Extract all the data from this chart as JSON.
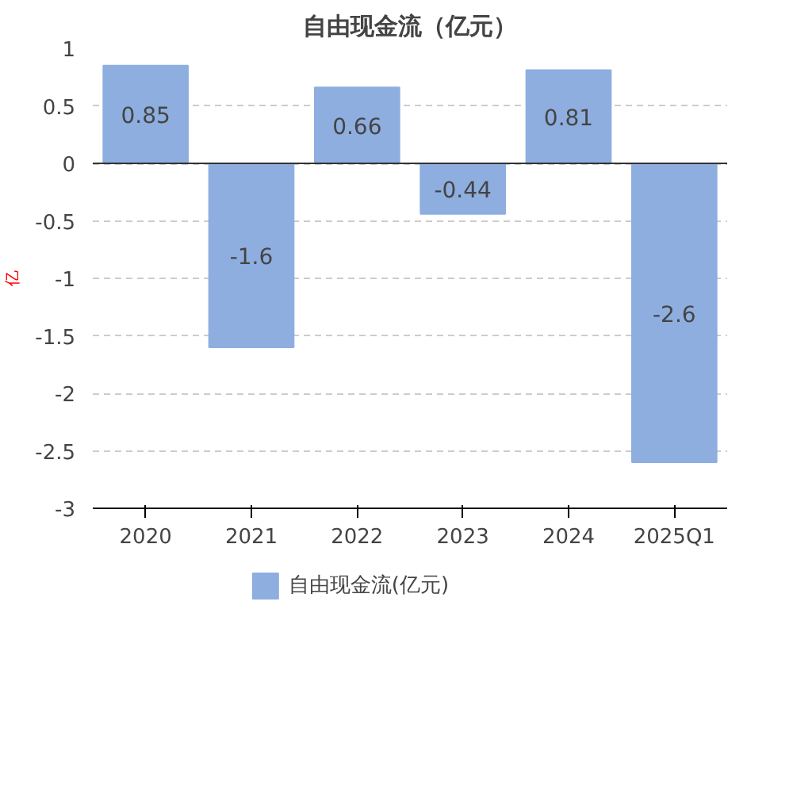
{
  "chart_data": {
    "type": "bar",
    "title": "自由现金流（亿元）",
    "ylabel": "亿",
    "categories": [
      "2020",
      "2021",
      "2022",
      "2023",
      "2024",
      "2025Q1"
    ],
    "series": [
      {
        "name": "自由现金流(亿元)",
        "color": "#8eaee0",
        "values": [
          0.85,
          -1.6,
          0.66,
          -0.44,
          0.81,
          -2.6
        ]
      }
    ],
    "ylim": [
      -3,
      1
    ],
    "yticks": [
      -3,
      -2.5,
      -2,
      -1.5,
      -1,
      -0.5,
      0,
      0.5,
      1
    ],
    "grid": "y",
    "legend": "bottom",
    "data_labels": true
  }
}
